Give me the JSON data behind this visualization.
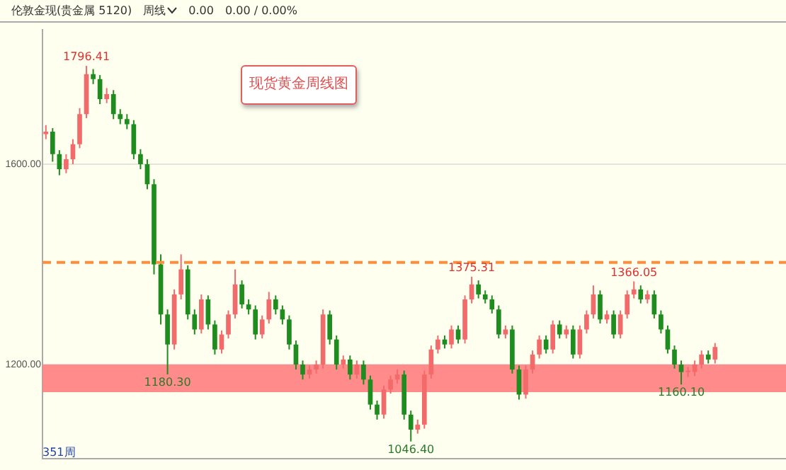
{
  "chart_data": {
    "type": "candlestick",
    "title": "现货黄金周线图",
    "categories": [
      null,
      null,
      null,
      null,
      null,
      null,
      null,
      null,
      null,
      null,
      null,
      null,
      null,
      null,
      null,
      null,
      null,
      null,
      null,
      null,
      null,
      null,
      null,
      null,
      null,
      null,
      null,
      null,
      null,
      null,
      null,
      null,
      null,
      null,
      null,
      null,
      null,
      null,
      null,
      null,
      null,
      null,
      null,
      null,
      null,
      null,
      null,
      null,
      null,
      null,
      null,
      null,
      null,
      null,
      null,
      null,
      null,
      null,
      null,
      null,
      null,
      null,
      null,
      null,
      null,
      null,
      null,
      null,
      null,
      null,
      null,
      null,
      null,
      null,
      null,
      null,
      null,
      null,
      null,
      null,
      null,
      null,
      null,
      null,
      null,
      null,
      null,
      null,
      null,
      null,
      null,
      null,
      null,
      null,
      null,
      null,
      null,
      null,
      null,
      null,
      null,
      null,
      null,
      null,
      null,
      null,
      null,
      null,
      null,
      null
    ],
    "ohlc": [
      [
        1660,
        1678,
        1650,
        1665
      ],
      [
        1665,
        1672,
        1605,
        1620
      ],
      [
        1620,
        1628,
        1578,
        1590
      ],
      [
        1590,
        1620,
        1582,
        1610
      ],
      [
        1610,
        1650,
        1600,
        1640
      ],
      [
        1640,
        1712,
        1632,
        1700
      ],
      [
        1700,
        1796.41,
        1692,
        1780
      ],
      [
        1780,
        1790,
        1760,
        1770
      ],
      [
        1770,
        1778,
        1720,
        1730
      ],
      [
        1730,
        1752,
        1722,
        1740
      ],
      [
        1740,
        1748,
        1690,
        1700
      ],
      [
        1700,
        1710,
        1680,
        1690
      ],
      [
        1690,
        1700,
        1670,
        1680
      ],
      [
        1680,
        1688,
        1610,
        1620
      ],
      [
        1620,
        1630,
        1590,
        1600
      ],
      [
        1600,
        1610,
        1550,
        1560
      ],
      [
        1560,
        1570,
        1380,
        1400
      ],
      [
        1400,
        1420,
        1280,
        1300
      ],
      [
        1300,
        1310,
        1180.3,
        1240
      ],
      [
        1240,
        1350,
        1230,
        1340
      ],
      [
        1340,
        1420,
        1330,
        1390
      ],
      [
        1390,
        1398,
        1290,
        1300
      ],
      [
        1300,
        1310,
        1260,
        1270
      ],
      [
        1270,
        1340,
        1262,
        1330
      ],
      [
        1330,
        1338,
        1270,
        1280
      ],
      [
        1280,
        1288,
        1220,
        1230
      ],
      [
        1230,
        1268,
        1222,
        1260
      ],
      [
        1260,
        1308,
        1252,
        1300
      ],
      [
        1300,
        1390,
        1292,
        1360
      ],
      [
        1360,
        1368,
        1312,
        1320
      ],
      [
        1320,
        1330,
        1300,
        1310
      ],
      [
        1310,
        1318,
        1250,
        1260
      ],
      [
        1260,
        1298,
        1252,
        1290
      ],
      [
        1290,
        1345,
        1282,
        1330
      ],
      [
        1330,
        1338,
        1300,
        1310
      ],
      [
        1310,
        1318,
        1280,
        1290
      ],
      [
        1290,
        1298,
        1230,
        1240
      ],
      [
        1240,
        1248,
        1190,
        1200
      ],
      [
        1200,
        1208,
        1170,
        1180
      ],
      [
        1180,
        1198,
        1172,
        1190
      ],
      [
        1190,
        1208,
        1182,
        1200
      ],
      [
        1200,
        1310,
        1192,
        1300
      ],
      [
        1300,
        1308,
        1240,
        1250
      ],
      [
        1250,
        1258,
        1190,
        1200
      ],
      [
        1200,
        1218,
        1192,
        1210
      ],
      [
        1210,
        1218,
        1170,
        1180
      ],
      [
        1180,
        1208,
        1172,
        1200
      ],
      [
        1200,
        1208,
        1160,
        1170
      ],
      [
        1170,
        1178,
        1110,
        1120
      ],
      [
        1120,
        1128,
        1090,
        1100
      ],
      [
        1100,
        1158,
        1092,
        1150
      ],
      [
        1150,
        1178,
        1142,
        1170
      ],
      [
        1170,
        1190,
        1162,
        1180
      ],
      [
        1180,
        1188,
        1090,
        1100
      ],
      [
        1100,
        1108,
        1046.4,
        1070
      ],
      [
        1070,
        1090,
        1062,
        1080
      ],
      [
        1080,
        1188,
        1072,
        1180
      ],
      [
        1180,
        1238,
        1172,
        1230
      ],
      [
        1230,
        1258,
        1222,
        1250
      ],
      [
        1250,
        1258,
        1232,
        1240
      ],
      [
        1240,
        1278,
        1232,
        1270
      ],
      [
        1270,
        1278,
        1242,
        1250
      ],
      [
        1250,
        1338,
        1242,
        1330
      ],
      [
        1330,
        1375.31,
        1322,
        1360
      ],
      [
        1360,
        1368,
        1332,
        1340
      ],
      [
        1340,
        1348,
        1322,
        1330
      ],
      [
        1330,
        1338,
        1302,
        1310
      ],
      [
        1310,
        1318,
        1252,
        1260
      ],
      [
        1260,
        1278,
        1252,
        1270
      ],
      [
        1270,
        1278,
        1182,
        1190
      ],
      [
        1190,
        1198,
        1130,
        1140
      ],
      [
        1140,
        1198,
        1132,
        1190
      ],
      [
        1190,
        1228,
        1182,
        1220
      ],
      [
        1220,
        1258,
        1212,
        1250
      ],
      [
        1250,
        1258,
        1222,
        1230
      ],
      [
        1230,
        1288,
        1222,
        1280
      ],
      [
        1280,
        1288,
        1252,
        1260
      ],
      [
        1260,
        1278,
        1252,
        1270
      ],
      [
        1270,
        1278,
        1212,
        1220
      ],
      [
        1220,
        1278,
        1212,
        1270
      ],
      [
        1270,
        1308,
        1262,
        1300
      ],
      [
        1300,
        1358,
        1292,
        1340
      ],
      [
        1340,
        1348,
        1282,
        1290
      ],
      [
        1290,
        1308,
        1282,
        1300
      ],
      [
        1300,
        1308,
        1252,
        1260
      ],
      [
        1260,
        1308,
        1252,
        1300
      ],
      [
        1300,
        1348,
        1292,
        1340
      ],
      [
        1340,
        1366.05,
        1332,
        1350
      ],
      [
        1350,
        1358,
        1322,
        1330
      ],
      [
        1330,
        1348,
        1322,
        1340
      ],
      [
        1340,
        1348,
        1292,
        1300
      ],
      [
        1300,
        1308,
        1262,
        1270
      ],
      [
        1270,
        1278,
        1222,
        1230
      ],
      [
        1230,
        1238,
        1192,
        1200
      ],
      [
        1200,
        1208,
        1160.1,
        1185
      ],
      [
        1185,
        1195,
        1175,
        1185
      ],
      [
        1185,
        1208,
        1177,
        1200
      ],
      [
        1200,
        1228,
        1192,
        1220
      ],
      [
        1220,
        1228,
        1202,
        1210
      ],
      [
        1210,
        1243,
        1202,
        1235
      ],
      null,
      null,
      null,
      null,
      null,
      null,
      null,
      null,
      null,
      null
    ],
    "ylim": [
      1012,
      1868
    ],
    "yticks": [
      {
        "value": 1200,
        "label": "1200.00"
      },
      {
        "value": 1600,
        "label": "1600.00"
      }
    ],
    "grid": "y",
    "tick_labels": "y",
    "ref_lines": [
      {
        "axis": "y",
        "value": 1404,
        "color": "#ff8c3a",
        "line_style": "dashed"
      }
    ],
    "bands": [
      {
        "axis": "y",
        "from": 1145,
        "to": 1200,
        "color": "#ff7f7f"
      }
    ],
    "annotations": [
      "伦敦金现(贵金属 5120)",
      "周线",
      "0.00",
      "0.00 / 0.00%",
      "351周",
      {
        "text": "1796.41",
        "y": 1796.41
      },
      {
        "text": "1180.30",
        "y": 1180.3
      },
      {
        "text": "1046.40",
        "y": 1046.4
      },
      {
        "text": "1375.31",
        "y": 1375.31
      },
      {
        "text": "1366.05",
        "y": 1366.05
      },
      {
        "text": "1160.10",
        "y": 1160.1
      }
    ]
  }
}
